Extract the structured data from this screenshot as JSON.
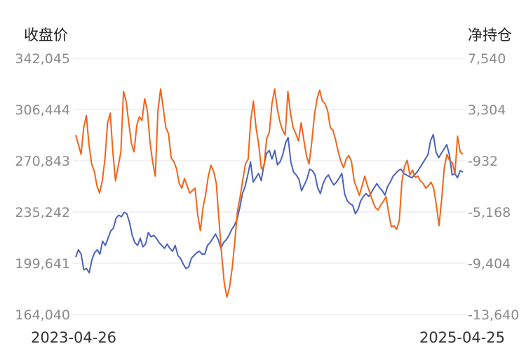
{
  "chart_data": {
    "type": "line",
    "left_axis_title": "收盘价",
    "right_axis_title": "净持仓",
    "left_ticks": [
      "342,045",
      "306,444",
      "270,843",
      "235,242",
      "199,641",
      "164,040"
    ],
    "right_ticks": [
      "7,540",
      "3,304",
      "-932",
      "-5,168",
      "-9,404",
      "-13,640"
    ],
    "ylim_left": [
      164040,
      342045
    ],
    "ylim_right": [
      -13640,
      7540
    ],
    "x_start": "2023-04-26",
    "x_end": "2025-04-25",
    "grid": true,
    "colors": {
      "close": "#4a62bd",
      "net": "#f26418",
      "grid": "#e4e4ec"
    },
    "series": [
      {
        "axis": "left",
        "values": [
          204000,
          209000,
          206000,
          195000,
          196000,
          193000,
          202000,
          207000,
          209000,
          206000,
          215000,
          212000,
          217000,
          222000,
          224000,
          231000,
          233000,
          232000,
          235000,
          234000,
          228000,
          219000,
          214000,
          212000,
          217000,
          211000,
          213000,
          221000,
          218000,
          219000,
          217000,
          214000,
          212000,
          210000,
          213000,
          210000,
          208000,
          212000,
          205000,
          203000,
          199000,
          196000,
          197000,
          203000,
          205000,
          207000,
          208000,
          206000,
          206000,
          212000,
          214000,
          217000,
          220000,
          216000,
          210000,
          214000,
          216000,
          219000,
          223000,
          226000,
          230000,
          238000,
          248000,
          253000,
          261000,
          270000,
          256000,
          259000,
          262000,
          257000,
          268000,
          276000,
          278000,
          272000,
          278000,
          268000,
          270000,
          275000,
          283000,
          287000,
          270000,
          263000,
          261000,
          258000,
          250000,
          254000,
          258000,
          265000,
          264000,
          261000,
          252000,
          248000,
          255000,
          259000,
          261000,
          257000,
          254000,
          256000,
          259000,
          262000,
          248000,
          243000,
          241000,
          240000,
          234000,
          237000,
          243000,
          246000,
          248000,
          246000,
          249000,
          252000,
          255000,
          252000,
          250000,
          247000,
          253000,
          256000,
          260000,
          262000,
          264000,
          265000,
          262000,
          261000,
          260000,
          259000,
          261000,
          263000,
          266000,
          269000,
          272000,
          275000,
          285000,
          289000,
          277000,
          273000,
          276000,
          279000,
          282000,
          275000,
          261000,
          262000,
          259000,
          264000,
          263000
        ]
      },
      {
        "axis": "right",
        "values": [
          1200,
          400,
          -400,
          1800,
          2800,
          400,
          -1200,
          -1800,
          -3000,
          -3600,
          -2600,
          -800,
          2200,
          3000,
          -200,
          -2600,
          -1400,
          -200,
          4800,
          4000,
          2200,
          500,
          -200,
          2000,
          2700,
          2400,
          4200,
          3200,
          600,
          -1000,
          -2200,
          3200,
          5000,
          3400,
          1800,
          1300,
          -700,
          -1000,
          -1600,
          -2800,
          -3200,
          -2400,
          -3000,
          -3600,
          -3400,
          -3200,
          -5400,
          -6700,
          -4800,
          -3700,
          -2200,
          -1300,
          -1800,
          -2800,
          -5800,
          -8600,
          -11000,
          -12200,
          -11400,
          -9800,
          -7600,
          -5100,
          -3900,
          -2500,
          -1200,
          -800,
          2400,
          4000,
          1800,
          400,
          -1600,
          -1400,
          900,
          1400,
          3800,
          5000,
          3400,
          2300,
          1600,
          1200,
          4800,
          3000,
          1800,
          1300,
          700,
          2200,
          800,
          -500,
          -1200,
          600,
          2800,
          4200,
          4900,
          4000,
          3800,
          3200,
          1800,
          1600,
          800,
          -200,
          -1000,
          -1500,
          -800,
          -500,
          -1000,
          -2600,
          -3200,
          -3800,
          -3000,
          -2200,
          -3000,
          -3600,
          -4300,
          -4800,
          -5000,
          -4600,
          -4300,
          -3900,
          -5200,
          -6400,
          -6300,
          -6600,
          -5900,
          -2700,
          -1400,
          -900,
          -2100,
          -1700,
          -2300,
          -2200,
          -2600,
          -2800,
          -3200,
          -3000,
          -2700,
          -3200,
          -4600,
          -6300,
          -4100,
          -1500,
          -400,
          -900,
          -1100,
          -2000,
          1100,
          -200,
          -400
        ]
      }
    ]
  }
}
